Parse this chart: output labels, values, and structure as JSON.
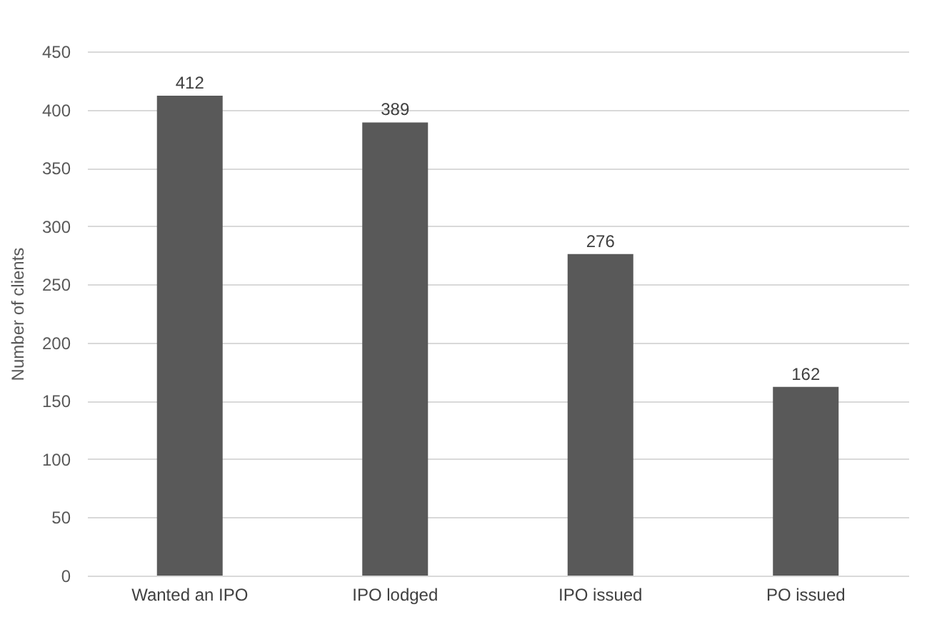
{
  "chart_data": {
    "type": "bar",
    "ylabel": "Number of clients",
    "categories": [
      "Wanted an IPO",
      "IPO lodged",
      "IPO issued",
      "PO issued"
    ],
    "values": [
      412,
      389,
      276,
      162
    ],
    "color": "#595959",
    "ylim": [
      0,
      450
    ],
    "yticks": [
      0,
      50,
      100,
      150,
      200,
      250,
      300,
      350,
      400,
      450
    ],
    "grid": "y",
    "data_labels": true
  }
}
